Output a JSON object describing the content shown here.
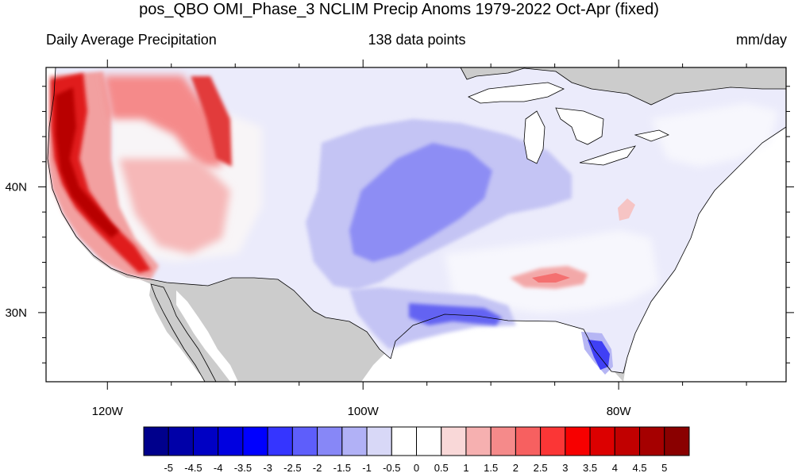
{
  "title": "pos_QBO OMI_Phase_3 NCLIM Precip Anoms 1979-2022 Oct-Apr (fixed)",
  "left_string": "Daily Average Precipitation",
  "center_string": "138 data points",
  "right_string": "mm/day",
  "map": {
    "projection": "cylindrical equidistant",
    "lon_range": [
      -124.8,
      -66.9
    ],
    "lat_range": [
      24.5,
      49.5
    ],
    "lon_ticks": [
      {
        "value": -120,
        "label": "120W"
      },
      {
        "value": -100,
        "label": "100W"
      },
      {
        "value": -80,
        "label": "80W"
      }
    ],
    "lat_ticks": [
      {
        "value": 40,
        "label": "40N"
      },
      {
        "value": 30,
        "label": "30N"
      }
    ],
    "missing_color": "#cccccc",
    "ocean_color": "#ffffff"
  },
  "colorbar": {
    "labels": [
      "-5",
      "-4.5",
      "-4",
      "-3.5",
      "-3",
      "-2.5",
      "-2",
      "-1.5",
      "-1",
      "-0.5",
      "0",
      "0.5",
      "1",
      "1.5",
      "2",
      "2.5",
      "3",
      "3.5",
      "4",
      "4.5",
      "5"
    ],
    "colors": [
      "#00008c",
      "#0000a8",
      "#0000c4",
      "#0000e0",
      "#0000ff",
      "#3535ff",
      "#5e5efb",
      "#8787f7",
      "#b1b1f6",
      "#d8d8f7",
      "#ffffff",
      "#ffffff",
      "#f9d8d8",
      "#f6b0b0",
      "#f58a8a",
      "#f76060",
      "#fb3636",
      "#f70000",
      "#dc0000",
      "#c10000",
      "#a50000",
      "#8a0000"
    ]
  }
}
